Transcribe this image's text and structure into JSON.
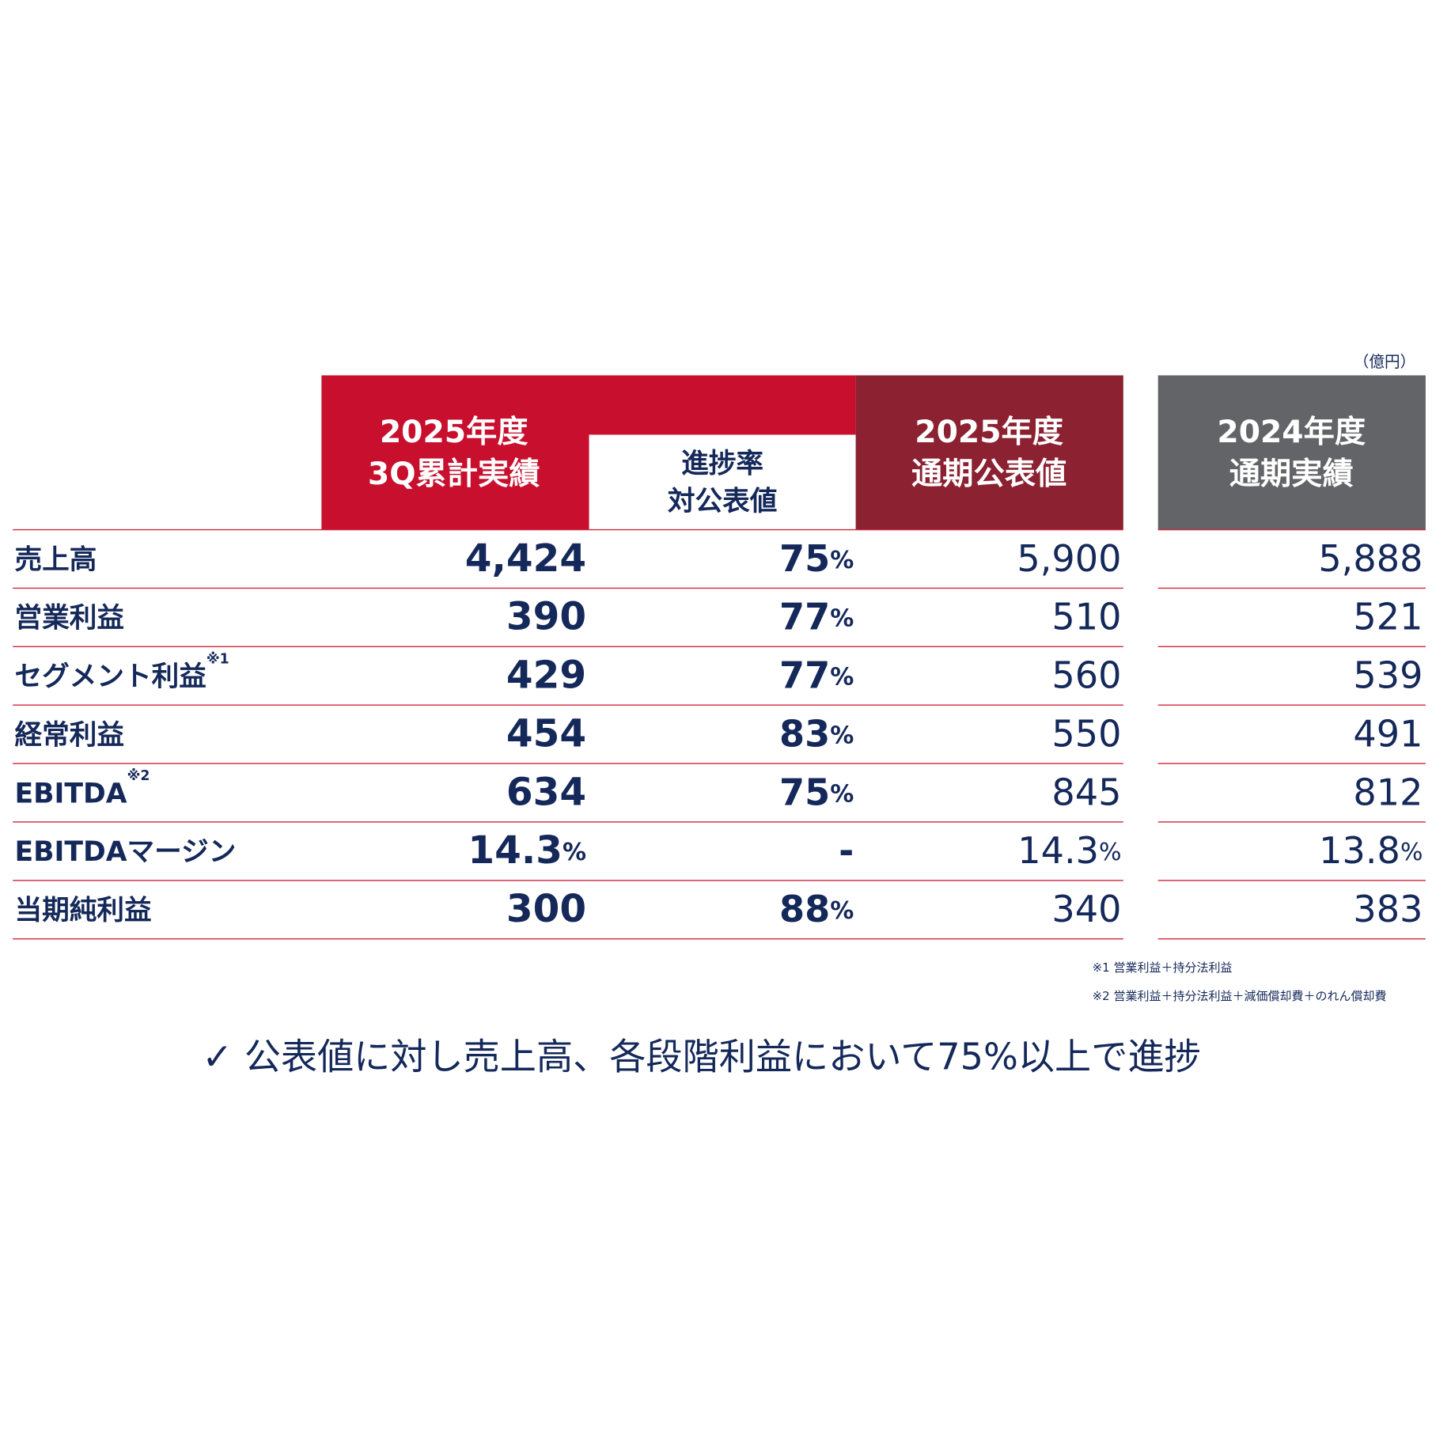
{
  "unit_note": "（億円）",
  "columns": [
    {
      "lines": [
        "2025年度",
        "3Q累計実績"
      ]
    },
    {
      "lines": [
        "進捗率",
        "対公表値"
      ]
    },
    {
      "lines": [
        "2025年度",
        "通期公表値"
      ]
    },
    {
      "lines": [
        "2024年度",
        "通期実績"
      ]
    }
  ],
  "rows": [
    {
      "label": "売上高",
      "cells": [
        [
          "4,424"
        ],
        [
          "75",
          "%"
        ],
        [
          "5,900"
        ],
        [
          "5,888"
        ]
      ]
    },
    {
      "label": "営業利益",
      "cells": [
        [
          "390"
        ],
        [
          "77",
          "%"
        ],
        [
          "510"
        ],
        [
          "521"
        ]
      ]
    },
    {
      "label": "セグメント利益",
      "note": "※1",
      "cells": [
        [
          "429"
        ],
        [
          "77",
          "%"
        ],
        [
          "560"
        ],
        [
          "539"
        ]
      ]
    },
    {
      "label": "経常利益",
      "cells": [
        [
          "454"
        ],
        [
          "83",
          "%"
        ],
        [
          "550"
        ],
        [
          "491"
        ]
      ]
    },
    {
      "label": "EBITDA",
      "note": "※2",
      "cells": [
        [
          "634"
        ],
        [
          "75",
          "%"
        ],
        [
          "845"
        ],
        [
          "812"
        ]
      ]
    },
    {
      "label": "EBITDAマージン",
      "cells": [
        [
          "14.3",
          "%"
        ],
        [
          "-"
        ],
        [
          "14.3",
          "%"
        ],
        [
          "13.8",
          "%"
        ]
      ]
    },
    {
      "label": "当期純利益",
      "cells": [
        [
          "300"
        ],
        [
          "88",
          "%"
        ],
        [
          "340"
        ],
        [
          "383"
        ]
      ]
    }
  ],
  "footnotes": [
    "※1  営業利益＋持分法利益",
    "※2  営業利益＋持分法利益＋減価償却費＋のれん償却費"
  ],
  "summary": "✓ 公表値に対し売上高、各段階利益において75%以上で進捗"
}
